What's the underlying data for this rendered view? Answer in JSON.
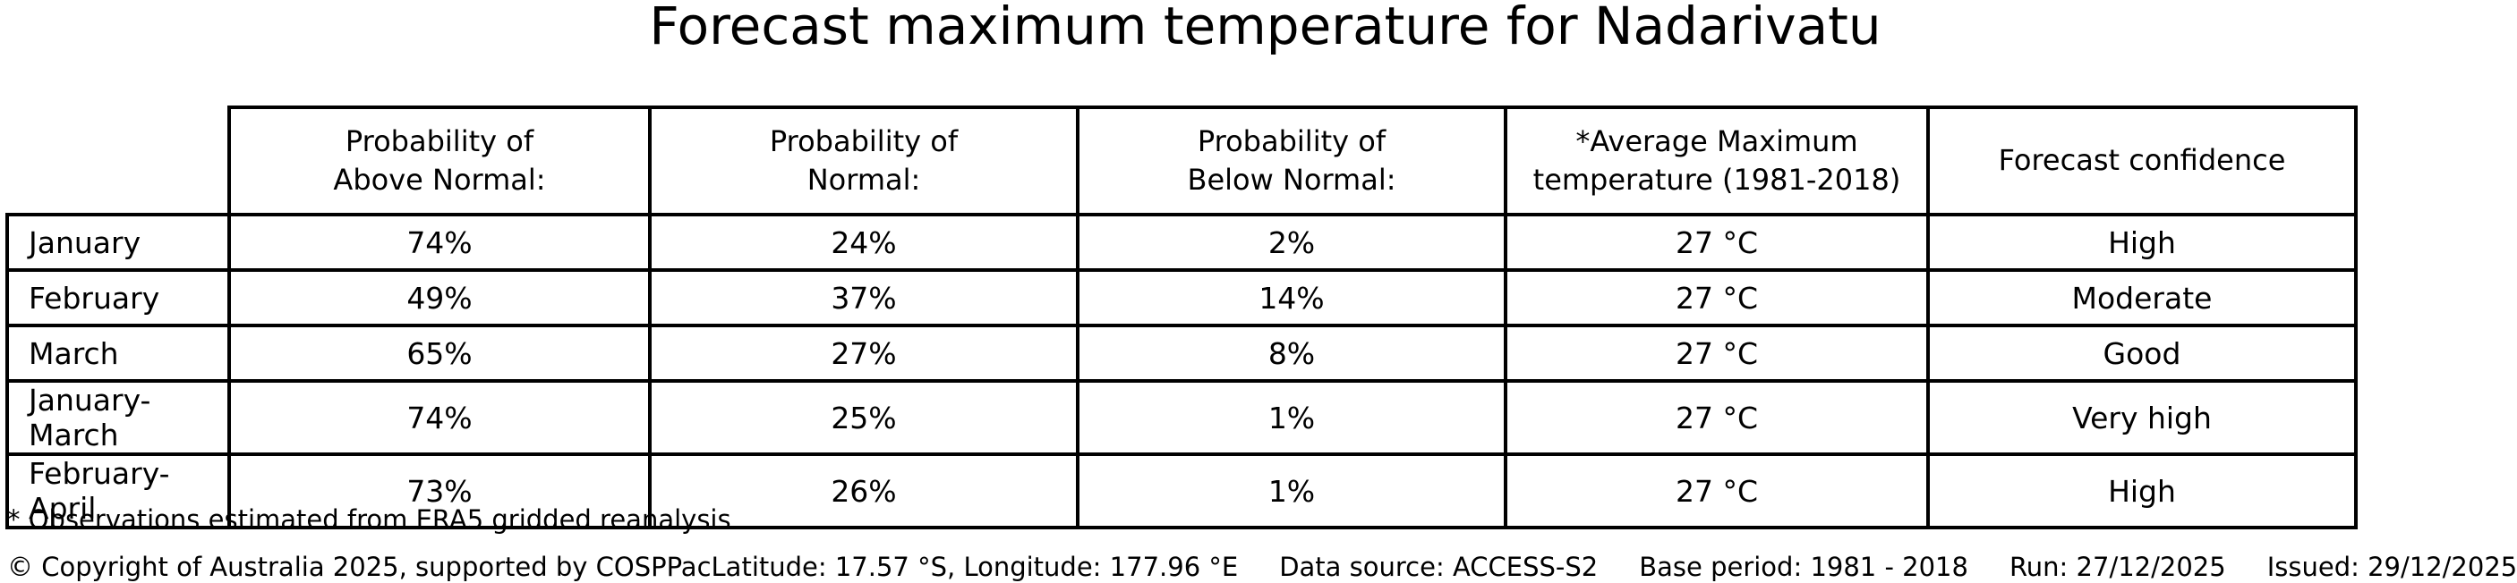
{
  "title": "Forecast maximum temperature for Nadarivatu",
  "chart_data": {
    "type": "table",
    "title": "Forecast maximum temperature for Nadarivatu",
    "columns": [
      "",
      "Probability of\nAbove Normal:",
      "Probability of\nNormal:",
      "Probability of\nBelow Normal:",
      "*Average Maximum\ntemperature (1981-2018)",
      "Forecast confidence"
    ],
    "rows": [
      [
        "January",
        "74%",
        "24%",
        "2%",
        "27 °C",
        "High"
      ],
      [
        "February",
        "49%",
        "37%",
        "14%",
        "27 °C",
        "Moderate"
      ],
      [
        "March",
        "65%",
        "27%",
        "8%",
        "27 °C",
        "Good"
      ],
      [
        "January-March",
        "74%",
        "25%",
        "1%",
        "27 °C",
        "Very high"
      ],
      [
        "February-April",
        "73%",
        "26%",
        "1%",
        "27 °C",
        "High"
      ]
    ]
  },
  "footnote": "* Observations estimated from ERA5 gridded reanalysis",
  "footer": {
    "copyright": "© Copyright of Australia 2025, supported by COSPPac",
    "location": "Latitude: 17.57 °S, Longitude: 177.96 °E",
    "data_source": "Data source: ACCESS-S2",
    "base_period": "Base period: 1981 - 2018",
    "run": "Run: 27/12/2025",
    "issued": "Issued: 29/12/2025"
  }
}
